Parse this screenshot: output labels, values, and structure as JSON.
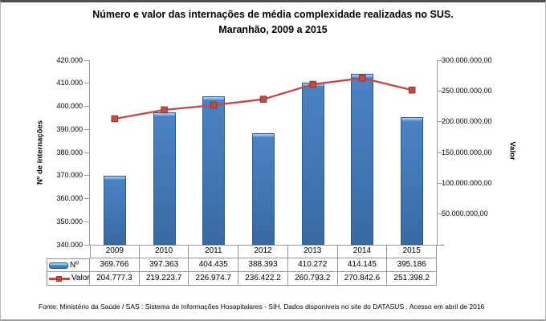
{
  "title": {
    "line1": "Número e valor das internações de média complexidade realizadas no SUS.",
    "line2": "Maranhão, 2009 a 2015"
  },
  "footer": {
    "text": "Fonte: Ministério da Saúde / SAS : Sistema de Informações Hosapitalares - SIH. Dados disponíveis no site do DATASUS . Acesso em abril de 2016"
  },
  "chart_data": {
    "type": "combo",
    "title": "Número e valor das internações de média complexidade realizadas no SUS. Maranhão, 2009 a 2015",
    "categories": [
      "2009",
      "2010",
      "2011",
      "2012",
      "2013",
      "2014",
      "2015"
    ],
    "series": [
      {
        "name": "Nº",
        "chart": "bar",
        "axis": "left",
        "values": [
          369766,
          397363,
          404435,
          388393,
          410272,
          414145,
          395186
        ],
        "display_values": [
          "369.766",
          "397.363",
          "404.435",
          "388.393",
          "410.272",
          "414.145",
          "395.186"
        ],
        "color": "#4176b4",
        "border_color": "#2c5a92"
      },
      {
        "name": "Valor",
        "chart": "line",
        "axis": "right",
        "values": [
          204777300,
          219223700,
          226974700,
          236422200,
          260793200,
          270842600,
          251398200
        ],
        "display_values": [
          "204.777.3",
          "219.223.7",
          "226.974.7",
          "236.422.2",
          "260.793.2",
          "270.842.6",
          "251.398.2"
        ],
        "color": "#bf4c48",
        "marker": "square"
      }
    ],
    "left_axis": {
      "title": "Nº de internações",
      "min": 340000,
      "max": 420000,
      "step": 10000,
      "tick_labels": [
        "340.000",
        "350.000",
        "360.000",
        "370.000",
        "380.000",
        "390.000",
        "400.000",
        "410.000",
        "420.000"
      ]
    },
    "right_axis": {
      "title": "Valor",
      "min": 0,
      "max": 300000000,
      "step": 50000000,
      "tick_labels": [
        "-",
        "50.000.000,00",
        "100.000.000,00",
        "150.000.000,00",
        "200.000.000,00",
        "250.000.000,00",
        "300.000.000,00"
      ]
    },
    "grid": false,
    "legend_position": "bottom-table"
  }
}
